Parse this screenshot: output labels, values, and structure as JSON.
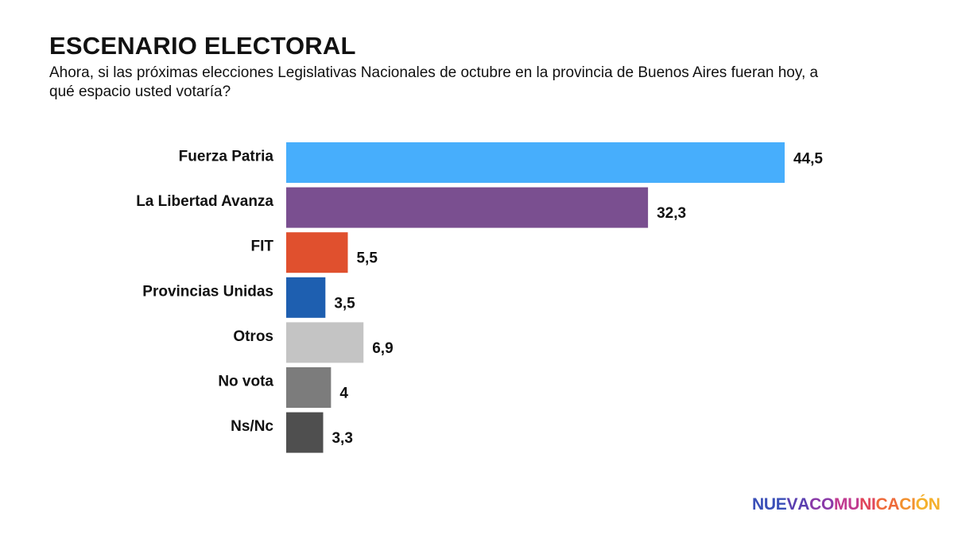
{
  "title": "ESCENARIO ELECTORAL",
  "subtitle": "Ahora, si las próximas elecciones Legislativas Nacionales de octubre en la provincia de Buenos Aires fueran hoy, a qué espacio usted votaría?",
  "logo_text": "NUEVACOMUNICACIÓN",
  "logo_colors": [
    "#3a4fb8",
    "#5a3fb0",
    "#8a3aa8",
    "#c03a90",
    "#e0455a",
    "#ee6a3a",
    "#f2902e",
    "#f4b02c"
  ],
  "chart_data": {
    "type": "bar",
    "orientation": "horizontal",
    "title": "ESCENARIO ELECTORAL",
    "categories": [
      "Fuerza Patria",
      "La Libertad Avanza",
      "FIT",
      "Provincias Unidas",
      "Otros",
      "No vota",
      "Ns/Nc"
    ],
    "values": [
      44.5,
      32.3,
      5.5,
      3.5,
      6.9,
      4,
      3.3
    ],
    "value_labels": [
      "44,5",
      "32,3",
      "5,5",
      "3,5",
      "6,9",
      "4",
      "3,3"
    ],
    "colors": [
      "#47aefc",
      "#7a4f90",
      "#e0502e",
      "#1e5fb0",
      "#c4c4c4",
      "#7c7c7c",
      "#4f4f4f"
    ],
    "xlim": [
      0,
      44.5
    ],
    "grid": false,
    "legend": "none"
  }
}
